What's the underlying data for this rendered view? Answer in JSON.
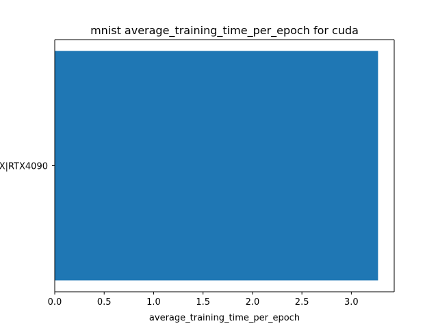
{
  "chart_data": {
    "type": "bar",
    "orientation": "horizontal",
    "title": "mnist average_training_time_per_epoch for cuda",
    "xlabel": "average_training_time_per_epoch",
    "ylabel": "",
    "categories": [
      "X|RTX4090"
    ],
    "values": [
      3.27
    ],
    "xlim": [
      0,
      3.4335
    ],
    "xticks": [
      0.0,
      0.5,
      1.0,
      1.5,
      2.0,
      2.5,
      3.0
    ],
    "xtick_labels": [
      "0.0",
      "0.5",
      "1.0",
      "1.5",
      "2.0",
      "2.5",
      "3.0"
    ],
    "grid": false,
    "colors": {
      "bar": "#1f77b4",
      "axes": "#000000",
      "background": "#ffffff"
    }
  }
}
